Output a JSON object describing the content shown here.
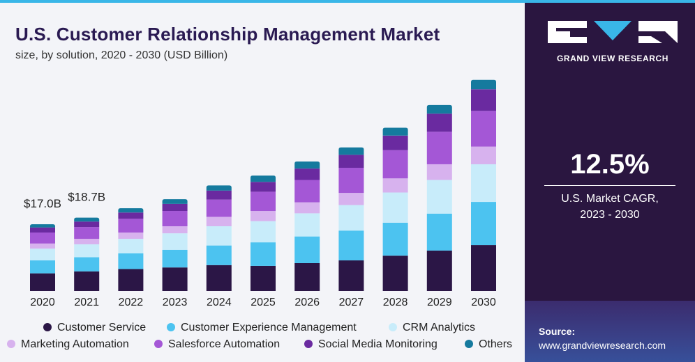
{
  "header": {
    "title": "U.S. Customer Relationship Management Market",
    "subtitle": "size, by solution, 2020 - 2030 (USD Billion)"
  },
  "brand": {
    "name": "GRAND VIEW RESEARCH",
    "panel_color": "#2a1640",
    "stripe_color": "#39b6e8",
    "title_color": "#2a1a52"
  },
  "cagr": {
    "value": "12.5%",
    "label_line1": "U.S. Market CAGR,",
    "label_line2": "2023 - 2030"
  },
  "source": {
    "label": "Source:",
    "url": "www.grandviewresearch.com"
  },
  "chart_data": {
    "type": "bar",
    "stacked": true,
    "categories": [
      "2020",
      "2021",
      "2022",
      "2023",
      "2024",
      "2025",
      "2026",
      "2027",
      "2028",
      "2029",
      "2030"
    ],
    "series": [
      {
        "name": "Customer Service",
        "color": "#2b1646",
        "values": [
          4.5,
          5.0,
          5.6,
          6.0,
          6.6,
          6.4,
          7.1,
          7.8,
          9.0,
          10.3,
          11.7
        ]
      },
      {
        "name": "Customer Experience Management",
        "color": "#4cc3f0",
        "values": [
          3.3,
          3.6,
          4.0,
          4.5,
          5.0,
          6.0,
          6.8,
          7.6,
          8.4,
          9.4,
          11.0
        ]
      },
      {
        "name": "CRM Analytics",
        "color": "#c8ecfa",
        "values": [
          3.0,
          3.3,
          3.7,
          4.2,
          4.9,
          5.4,
          5.9,
          6.5,
          7.7,
          8.6,
          9.6
        ]
      },
      {
        "name": "Marketing Automation",
        "color": "#d7b2ee",
        "values": [
          1.3,
          1.4,
          1.6,
          1.8,
          2.4,
          2.6,
          2.8,
          3.1,
          3.6,
          4.0,
          4.5
        ]
      },
      {
        "name": "Salesforce Automation",
        "color": "#a457d6",
        "values": [
          2.8,
          3.0,
          3.5,
          3.9,
          4.4,
          4.9,
          5.7,
          6.4,
          7.2,
          8.3,
          9.1
        ]
      },
      {
        "name": "Social Media Monitoring",
        "color": "#6a2aa0",
        "values": [
          1.3,
          1.4,
          1.6,
          1.8,
          2.3,
          2.5,
          2.9,
          3.3,
          3.7,
          4.6,
          5.5
        ]
      },
      {
        "name": "Others",
        "color": "#157a9e",
        "values": [
          0.8,
          1.0,
          1.1,
          1.2,
          1.3,
          1.6,
          1.8,
          1.9,
          2.0,
          2.2,
          2.4
        ]
      }
    ],
    "data_labels": [
      {
        "category": "2020",
        "text": "$17.0B"
      },
      {
        "category": "2021",
        "text": "$18.7B"
      }
    ],
    "ylim": [
      0,
      55
    ],
    "grid": false,
    "legend_position": "bottom"
  }
}
